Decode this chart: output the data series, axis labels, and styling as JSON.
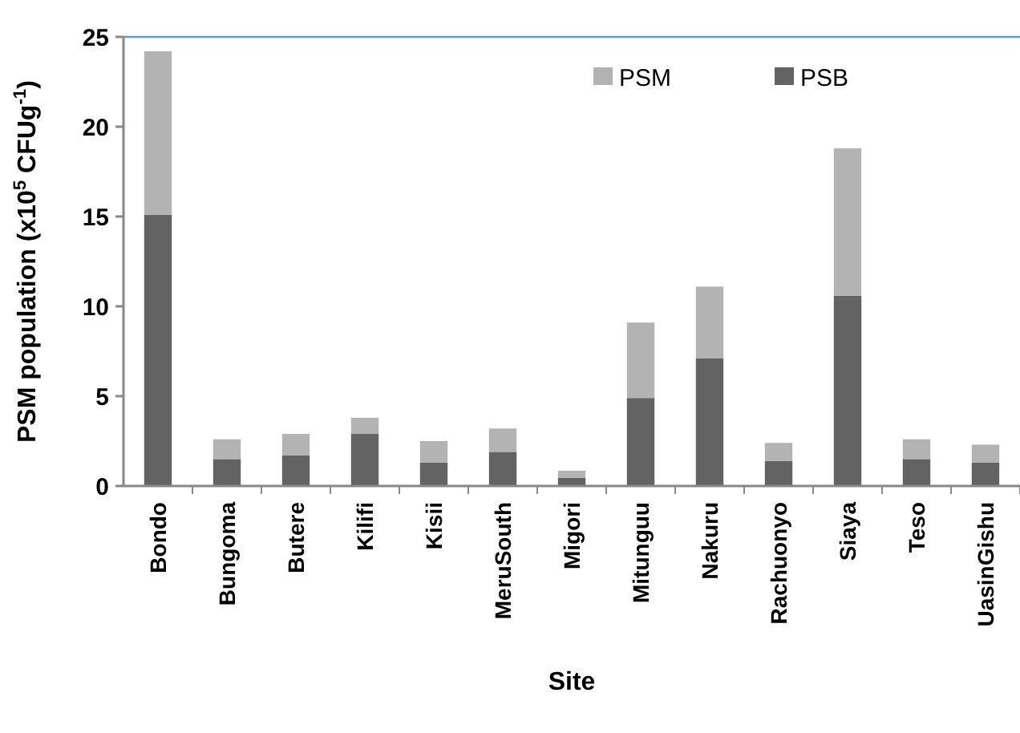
{
  "chart_data": {
    "type": "bar",
    "stacked": true,
    "xlabel": "Site",
    "ylabel": "PSM population (x10$^{5}$ CFUg$^{-1}$)",
    "categories": [
      "Bondo",
      "Bungoma",
      "Butere",
      "Kilifi",
      "Kisii",
      "MeruSouth",
      "Migori",
      "Mitunguu",
      "Nakuru",
      "Rachuonyo",
      "Siaya",
      "Teso",
      "UasinGishu"
    ],
    "series": [
      {
        "name": "PSB",
        "color": "#636363",
        "values": [
          15.1,
          1.5,
          1.7,
          2.9,
          1.3,
          1.9,
          0.45,
          4.9,
          7.1,
          1.4,
          10.6,
          1.5,
          1.3
        ]
      },
      {
        "name": "PSM",
        "color": "#b3b3b3",
        "values": [
          9.1,
          1.1,
          1.2,
          0.9,
          1.2,
          1.3,
          0.4,
          4.2,
          4.0,
          1.0,
          8.2,
          1.1,
          1.0
        ]
      }
    ],
    "ylim": [
      0,
      25
    ],
    "yticks": [
      0,
      5,
      10,
      15,
      20,
      25
    ],
    "legend": "top right",
    "ref_lines": [
      {
        "axis": "y",
        "value": 25,
        "color": "#5b9bd5"
      }
    ]
  }
}
